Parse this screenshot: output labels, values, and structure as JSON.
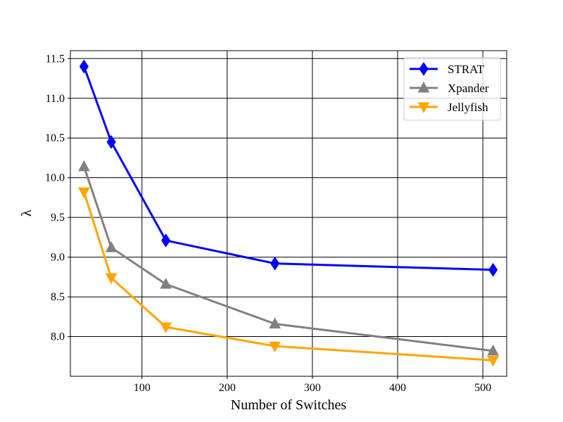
{
  "chart_data": {
    "type": "line",
    "xlabel": "Number of Switches",
    "ylabel": "λ",
    "xlim": [
      16,
      528
    ],
    "ylim": [
      7.5,
      11.6
    ],
    "xticks": [
      100,
      200,
      300,
      400,
      500
    ],
    "yticks": [
      8.0,
      8.5,
      9.0,
      9.5,
      10.0,
      10.5,
      11.0,
      11.5
    ],
    "grid": true,
    "legend_position": "top-right",
    "x": [
      32,
      64,
      128,
      256,
      512
    ],
    "series": [
      {
        "name": "STRAT",
        "color": "#0000ff",
        "marker": "diamond",
        "values": [
          11.4,
          10.45,
          9.21,
          8.92,
          8.84
        ]
      },
      {
        "name": "Xpander",
        "color": "#808080",
        "marker": "triangle-up",
        "values": [
          10.14,
          9.12,
          8.66,
          8.16,
          7.82
        ]
      },
      {
        "name": "Jellyfish",
        "color": "#ffa500",
        "marker": "triangle-down",
        "values": [
          9.82,
          8.74,
          8.12,
          7.88,
          7.7
        ]
      }
    ]
  }
}
